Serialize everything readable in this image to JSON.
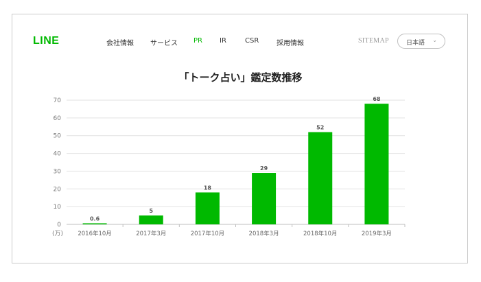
{
  "header": {
    "logo": "LINE",
    "nav": [
      "会社情報",
      "サービス",
      "PR",
      "IR",
      "CSR",
      "採用情報"
    ],
    "active_nav": "PR",
    "sitemap": "SITEMAP",
    "language": "日本語",
    "accent_color": "#00b900"
  },
  "chart_data": {
    "type": "bar",
    "title": "「トーク占い」鑑定数推移",
    "categories": [
      "2016年10月",
      "2017年3月",
      "2017年10月",
      "2018年3月",
      "2018年10月",
      "2019年3月"
    ],
    "values": [
      0.6,
      5,
      18,
      29,
      52,
      68
    ],
    "value_labels": [
      "0.6",
      "5",
      "18",
      "29",
      "52",
      "68"
    ],
    "y_ticks": [
      "0",
      "10",
      "20",
      "30",
      "40",
      "50",
      "60",
      "70"
    ],
    "ylim": [
      0,
      70
    ],
    "yunit": "(万)",
    "bar_color": "#00b900",
    "grid": true
  }
}
